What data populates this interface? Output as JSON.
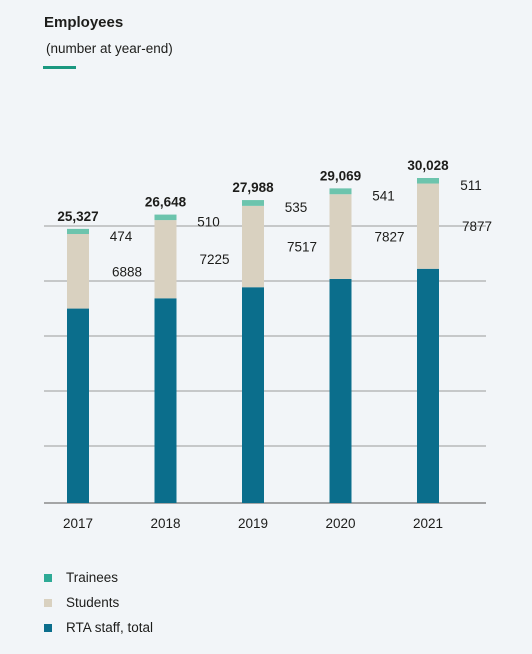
{
  "title": "Employees",
  "subtitle": "(number at year-end)",
  "colors": {
    "accent": "#1a9880",
    "trainees": "#6cc4ad",
    "students": "#d9d1c0",
    "staff": "#0b6e8c",
    "gridline": "#8a8a8a"
  },
  "legend": [
    {
      "label": "Trainees",
      "color": "#2eaa96"
    },
    {
      "label": "Students",
      "color": "#d9d1c0"
    },
    {
      "label": "RTA staff, total",
      "color": "#0b6e8c"
    }
  ],
  "chart_data": {
    "type": "bar",
    "stacked": true,
    "categories": [
      "2017",
      "2018",
      "2019",
      "2020",
      "2021"
    ],
    "series": [
      {
        "name": "RTA staff, total",
        "values": [
          17965,
          18913,
          19936,
          20701,
          21640
        ]
      },
      {
        "name": "Students",
        "values": [
          6888,
          7225,
          7517,
          7827,
          7877
        ],
        "labels": [
          "6888",
          "7225",
          "7517",
          "7827",
          "7877"
        ]
      },
      {
        "name": "Trainees",
        "values": [
          474,
          510,
          535,
          541,
          511
        ],
        "labels": [
          "474",
          "510",
          "535",
          "541",
          "511"
        ]
      }
    ],
    "totals": [
      25327,
      26648,
      27988,
      29069,
      30028
    ],
    "total_labels": [
      "25,327",
      "26,648",
      "27,988",
      "29,069",
      "30,028"
    ],
    "ylim": [
      0,
      30028
    ],
    "grid": true,
    "legend_position": "bottom-left"
  }
}
